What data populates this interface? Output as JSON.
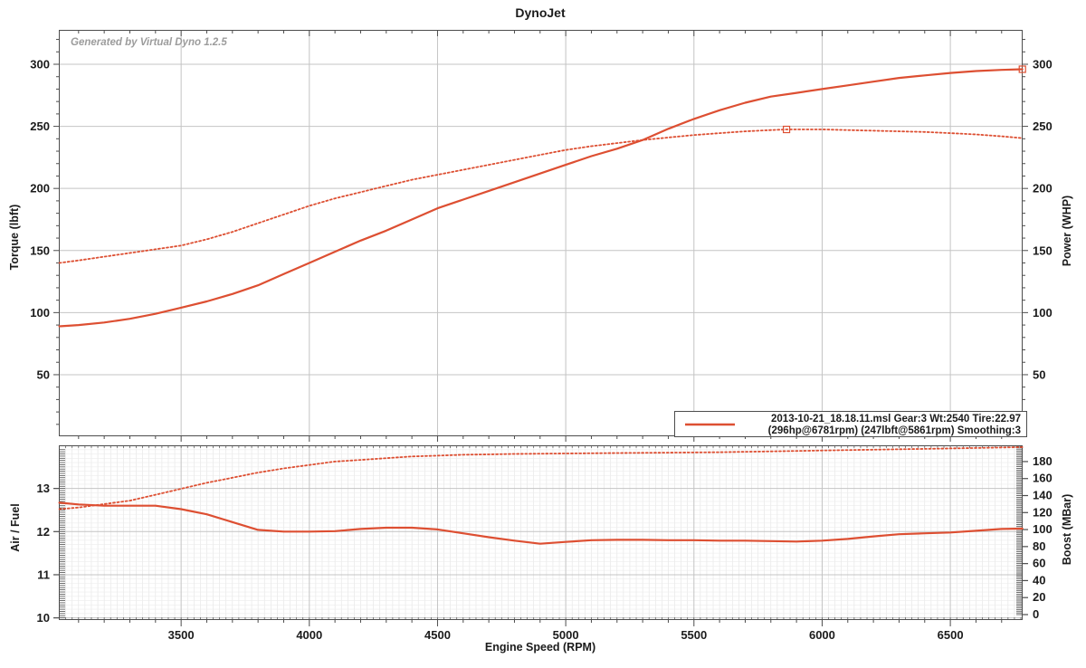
{
  "title": "DynoJet",
  "watermark": "Generated by Virtual Dyno 1.2.5",
  "colors": {
    "curve": "#dd4f32",
    "grid_major": "#c4c4c4",
    "grid_minor_v": "#e3e3e3",
    "grid_minor_h": "#ececec",
    "axis": "#4d4d4d",
    "text": "#1b1b1b",
    "watermark": "#9c9c9c",
    "background": "#ffffff"
  },
  "legend": {
    "line1": "2013-10-21_18.18.11.msl Gear:3 Wt:2540 Tire:22.97",
    "line2": "(296hp@6781rpm) (247lbft@5861rpm) Smoothing:3",
    "swatch": "solid-line"
  },
  "chart_data": [
    {
      "type": "line",
      "title": "DynoJet",
      "xlabel": "Engine Speed (RPM)",
      "ylabel_left": "Torque (lbft)",
      "ylabel_right": "Power (WHP)",
      "x_range": [
        3023,
        6782
      ],
      "y_range": [
        0,
        328
      ],
      "x_ticks": [
        3500,
        4000,
        4500,
        5000,
        5500,
        6000,
        6500
      ],
      "y_ticks": [
        50,
        100,
        150,
        200,
        250,
        300
      ],
      "grid": true,
      "legend_position": "bottom-right",
      "series": [
        {
          "name": "Power (WHP)",
          "style": "solid",
          "peak": "296hp@6781rpm",
          "marker_point": [
            6781,
            296
          ],
          "points": [
            [
              3025,
              89
            ],
            [
              3100,
              90
            ],
            [
              3200,
              92
            ],
            [
              3300,
              95
            ],
            [
              3400,
              99
            ],
            [
              3500,
              104
            ],
            [
              3600,
              109
            ],
            [
              3700,
              115
            ],
            [
              3800,
              122
            ],
            [
              3900,
              131
            ],
            [
              4000,
              140
            ],
            [
              4100,
              149
            ],
            [
              4200,
              158
            ],
            [
              4300,
              166
            ],
            [
              4400,
              175
            ],
            [
              4500,
              184
            ],
            [
              4600,
              191
            ],
            [
              4700,
              198
            ],
            [
              4800,
              205
            ],
            [
              4900,
              212
            ],
            [
              5000,
              219
            ],
            [
              5100,
              226
            ],
            [
              5200,
              232
            ],
            [
              5300,
              239
            ],
            [
              5400,
              248
            ],
            [
              5500,
              256
            ],
            [
              5600,
              263
            ],
            [
              5700,
              269
            ],
            [
              5800,
              274
            ],
            [
              5900,
              277
            ],
            [
              6000,
              280
            ],
            [
              6100,
              283
            ],
            [
              6200,
              286
            ],
            [
              6300,
              289
            ],
            [
              6400,
              291
            ],
            [
              6500,
              293
            ],
            [
              6600,
              294.5
            ],
            [
              6700,
              295.5
            ],
            [
              6781,
              296
            ]
          ]
        },
        {
          "name": "Torque (lbft)",
          "style": "dotted",
          "peak": "247lbft@5861rpm",
          "marker_point": [
            5861,
            247.5
          ],
          "points": [
            [
              3025,
              140
            ],
            [
              3100,
              142
            ],
            [
              3200,
              145
            ],
            [
              3300,
              148
            ],
            [
              3400,
              151
            ],
            [
              3500,
              154
            ],
            [
              3600,
              159
            ],
            [
              3700,
              165
            ],
            [
              3800,
              172
            ],
            [
              3900,
              179
            ],
            [
              4000,
              186
            ],
            [
              4100,
              192
            ],
            [
              4200,
              197
            ],
            [
              4300,
              202
            ],
            [
              4400,
              207
            ],
            [
              4500,
              211
            ],
            [
              4600,
              215
            ],
            [
              4700,
              219
            ],
            [
              4800,
              223
            ],
            [
              4900,
              227
            ],
            [
              5000,
              231
            ],
            [
              5100,
              234
            ],
            [
              5200,
              236.5
            ],
            [
              5300,
              239
            ],
            [
              5400,
              241
            ],
            [
              5500,
              243
            ],
            [
              5600,
              244.5
            ],
            [
              5700,
              246
            ],
            [
              5800,
              247
            ],
            [
              5861,
              247.5
            ],
            [
              6000,
              247.5
            ],
            [
              6100,
              247
            ],
            [
              6200,
              246.5
            ],
            [
              6300,
              246
            ],
            [
              6400,
              245.5
            ],
            [
              6500,
              244.5
            ],
            [
              6600,
              243.5
            ],
            [
              6700,
              242
            ],
            [
              6781,
              240.5
            ]
          ]
        }
      ]
    },
    {
      "type": "line",
      "title": "",
      "xlabel": "Engine Speed (RPM)",
      "ylabel_left": "Air / Fuel",
      "ylabel_right": "Boost (MBar)",
      "x_range": [
        3023,
        6782
      ],
      "y_left_range": [
        9.95,
        14.0
      ],
      "y_right_range": [
        -6.4,
        199.1
      ],
      "x_ticks": [
        3500,
        4000,
        4500,
        5000,
        5500,
        6000,
        6500
      ],
      "y_left_ticks": [
        10,
        11,
        12,
        13
      ],
      "y_right_ticks": [
        0,
        20,
        40,
        60,
        80,
        100,
        120,
        140,
        160,
        180
      ],
      "grid": true,
      "series": [
        {
          "name": "Air / Fuel",
          "axis": "left",
          "style": "solid",
          "points": [
            [
              3025,
              12.67
            ],
            [
              3100,
              12.63
            ],
            [
              3200,
              12.6
            ],
            [
              3300,
              12.6
            ],
            [
              3400,
              12.6
            ],
            [
              3500,
              12.52
            ],
            [
              3600,
              12.4
            ],
            [
              3700,
              12.22
            ],
            [
              3800,
              12.04
            ],
            [
              3900,
              12.0
            ],
            [
              4000,
              12.0
            ],
            [
              4100,
              12.01
            ],
            [
              4200,
              12.06
            ],
            [
              4300,
              12.09
            ],
            [
              4400,
              12.09
            ],
            [
              4500,
              12.05
            ],
            [
              4600,
              11.96
            ],
            [
              4700,
              11.87
            ],
            [
              4800,
              11.79
            ],
            [
              4900,
              11.72
            ],
            [
              5000,
              11.76
            ],
            [
              5100,
              11.8
            ],
            [
              5200,
              11.81
            ],
            [
              5300,
              11.81
            ],
            [
              5400,
              11.8
            ],
            [
              5500,
              11.8
            ],
            [
              5600,
              11.79
            ],
            [
              5700,
              11.79
            ],
            [
              5800,
              11.78
            ],
            [
              5900,
              11.77
            ],
            [
              6000,
              11.79
            ],
            [
              6100,
              11.83
            ],
            [
              6200,
              11.89
            ],
            [
              6300,
              11.94
            ],
            [
              6400,
              11.96
            ],
            [
              6500,
              11.98
            ],
            [
              6600,
              12.02
            ],
            [
              6700,
              12.06
            ],
            [
              6781,
              12.07
            ]
          ]
        },
        {
          "name": "Boost (MBar)",
          "axis": "right",
          "style": "dotted",
          "points": [
            [
              3025,
              124
            ],
            [
              3100,
              126
            ],
            [
              3200,
              130
            ],
            [
              3300,
              134
            ],
            [
              3400,
              141
            ],
            [
              3500,
              148
            ],
            [
              3600,
              155
            ],
            [
              3700,
              161
            ],
            [
              3800,
              167
            ],
            [
              3900,
              172
            ],
            [
              4000,
              176
            ],
            [
              4100,
              180
            ],
            [
              4200,
              182
            ],
            [
              4300,
              184
            ],
            [
              4400,
              186
            ],
            [
              4500,
              187
            ],
            [
              4600,
              188
            ],
            [
              4700,
              188.5
            ],
            [
              4800,
              189
            ],
            [
              5000,
              189.5
            ],
            [
              5200,
              190
            ],
            [
              5400,
              190.5
            ],
            [
              5600,
              191
            ],
            [
              5800,
              192
            ],
            [
              6000,
              193
            ],
            [
              6200,
              194
            ],
            [
              6400,
              195
            ],
            [
              6600,
              196
            ],
            [
              6781,
              197
            ]
          ]
        }
      ]
    }
  ]
}
